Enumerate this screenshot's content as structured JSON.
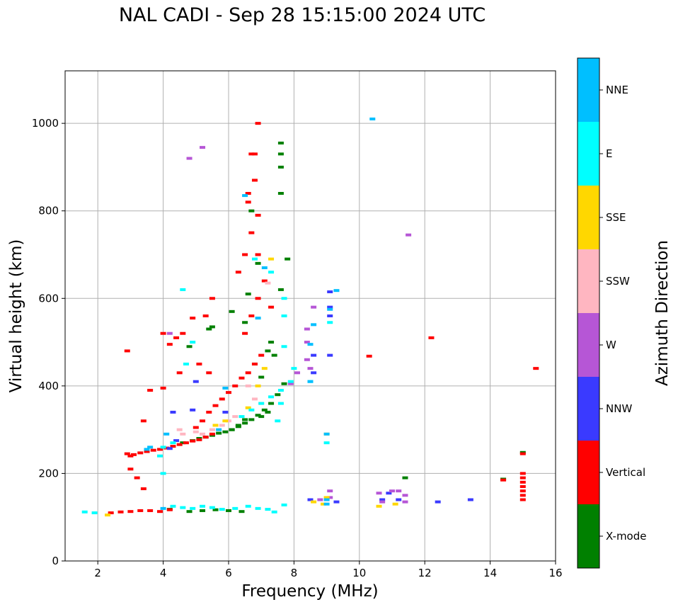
{
  "chart_data": {
    "type": "scatter",
    "title": "NAL CADI - Sep 28 15:15:00 2024 UTC",
    "xlabel": "Frequency (MHz)",
    "ylabel": "Virtual height (km)",
    "xlim": [
      1,
      16
    ],
    "ylim": [
      0,
      1120
    ],
    "xticks": [
      2,
      4,
      6,
      8,
      10,
      12,
      14,
      16
    ],
    "yticks": [
      0,
      200,
      400,
      600,
      800,
      1000
    ],
    "grid": true,
    "colorbar": {
      "label": "Azimuth Direction",
      "categories": [
        {
          "name": "X-mode",
          "color": "#008000"
        },
        {
          "name": "Vertical",
          "color": "#ff0000"
        },
        {
          "name": "NNW",
          "color": "#3a3aff"
        },
        {
          "name": "W",
          "color": "#b656d6"
        },
        {
          "name": "SSW",
          "color": "#ffb6c1"
        },
        {
          "name": "SSE",
          "color": "#ffd700"
        },
        {
          "name": "E",
          "color": "#00ffff"
        },
        {
          "name": "NNE",
          "color": "#00bfff"
        }
      ]
    },
    "series": [
      {
        "name": "X-mode",
        "points": [
          [
            4.6,
            270
          ],
          [
            4.9,
            275
          ],
          [
            5.1,
            280
          ],
          [
            5.3,
            283
          ],
          [
            5.5,
            287
          ],
          [
            5.7,
            292
          ],
          [
            5.9,
            295
          ],
          [
            6.1,
            300
          ],
          [
            6.3,
            307
          ],
          [
            6.5,
            315
          ],
          [
            6.7,
            323
          ],
          [
            6.9,
            333
          ],
          [
            7.1,
            345
          ],
          [
            7.3,
            360
          ],
          [
            7.5,
            380
          ],
          [
            7.7,
            405
          ],
          [
            4.2,
            118
          ],
          [
            4.8,
            113
          ],
          [
            5.2,
            115
          ],
          [
            5.6,
            117
          ],
          [
            6.0,
            115
          ],
          [
            6.4,
            113
          ],
          [
            5.5,
            535
          ],
          [
            5.4,
            530
          ],
          [
            6.1,
            570
          ],
          [
            6.5,
            545
          ],
          [
            6.8,
            450
          ],
          [
            7.0,
            420
          ],
          [
            7.2,
            480
          ],
          [
            7.4,
            470
          ],
          [
            7.6,
            620
          ],
          [
            7.6,
            840
          ],
          [
            7.6,
            900
          ],
          [
            7.6,
            930
          ],
          [
            7.6,
            955
          ],
          [
            7.3,
            500
          ],
          [
            6.9,
            680
          ],
          [
            6.6,
            610
          ],
          [
            7.8,
            690
          ],
          [
            4.8,
            490
          ],
          [
            15.0,
            248
          ],
          [
            14.4,
            187
          ],
          [
            11.4,
            190
          ],
          [
            6.1,
            300
          ],
          [
            6.3,
            310
          ],
          [
            6.5,
            323
          ],
          [
            7.0,
            330
          ],
          [
            7.2,
            340
          ],
          [
            6.7,
            800
          ]
        ]
      },
      {
        "name": "Vertical",
        "points": [
          [
            2.4,
            110
          ],
          [
            2.7,
            112
          ],
          [
            3.0,
            113
          ],
          [
            3.3,
            115
          ],
          [
            3.6,
            115
          ],
          [
            3.9,
            113
          ],
          [
            4.2,
            117
          ],
          [
            2.9,
            245
          ],
          [
            3.1,
            243
          ],
          [
            3.3,
            247
          ],
          [
            3.5,
            250
          ],
          [
            3.7,
            253
          ],
          [
            3.9,
            255
          ],
          [
            4.1,
            258
          ],
          [
            4.3,
            262
          ],
          [
            4.5,
            266
          ],
          [
            4.7,
            270
          ],
          [
            4.9,
            274
          ],
          [
            5.1,
            277
          ],
          [
            5.3,
            283
          ],
          [
            5.5,
            290
          ],
          [
            5.0,
            305
          ],
          [
            5.2,
            320
          ],
          [
            5.4,
            340
          ],
          [
            5.6,
            355
          ],
          [
            5.8,
            370
          ],
          [
            6.0,
            385
          ],
          [
            6.2,
            400
          ],
          [
            6.4,
            418
          ],
          [
            6.6,
            430
          ],
          [
            6.8,
            450
          ],
          [
            7.0,
            470
          ],
          [
            6.5,
            520
          ],
          [
            6.7,
            560
          ],
          [
            6.9,
            600
          ],
          [
            7.1,
            640
          ],
          [
            6.3,
            660
          ],
          [
            6.5,
            700
          ],
          [
            6.7,
            750
          ],
          [
            6.9,
            790
          ],
          [
            6.7,
            930
          ],
          [
            6.8,
            870
          ],
          [
            6.9,
            700
          ],
          [
            6.9,
            1000
          ],
          [
            4.2,
            495
          ],
          [
            4.4,
            510
          ],
          [
            4.6,
            520
          ],
          [
            5.3,
            560
          ],
          [
            5.5,
            600
          ],
          [
            3.6,
            390
          ],
          [
            3.4,
            320
          ],
          [
            2.9,
            480
          ],
          [
            4.0,
            395
          ],
          [
            4.0,
            520
          ],
          [
            4.9,
            555
          ],
          [
            6.6,
            820
          ],
          [
            6.6,
            840
          ],
          [
            6.8,
            930
          ],
          [
            10.3,
            468
          ],
          [
            12.2,
            510
          ],
          [
            15.4,
            440
          ],
          [
            15.0,
            245
          ],
          [
            15.0,
            200
          ],
          [
            15.0,
            190
          ],
          [
            15.0,
            180
          ],
          [
            15.0,
            170
          ],
          [
            15.0,
            160
          ],
          [
            15.0,
            150
          ],
          [
            15.0,
            140
          ],
          [
            14.4,
            185
          ],
          [
            5.1,
            450
          ],
          [
            5.4,
            430
          ],
          [
            4.5,
            430
          ],
          [
            7.3,
            580
          ],
          [
            3.0,
            240
          ],
          [
            3.0,
            210
          ],
          [
            3.2,
            190
          ],
          [
            3.4,
            165
          ]
        ]
      },
      {
        "name": "NNW",
        "points": [
          [
            4.3,
            340
          ],
          [
            4.9,
            345
          ],
          [
            5.0,
            410
          ],
          [
            9.1,
            615
          ],
          [
            9.1,
            580
          ],
          [
            9.1,
            560
          ],
          [
            9.1,
            470
          ],
          [
            8.6,
            470
          ],
          [
            8.6,
            430
          ],
          [
            10.7,
            140
          ],
          [
            10.9,
            155
          ],
          [
            11.2,
            140
          ],
          [
            12.4,
            135
          ],
          [
            13.4,
            140
          ],
          [
            9.3,
            135
          ],
          [
            8.5,
            140
          ],
          [
            4.4,
            275
          ],
          [
            4.2,
            257
          ],
          [
            5.9,
            340
          ]
        ]
      },
      {
        "name": "W",
        "points": [
          [
            8.1,
            430
          ],
          [
            8.4,
            530
          ],
          [
            8.4,
            500
          ],
          [
            8.4,
            460
          ],
          [
            8.5,
            440
          ],
          [
            8.6,
            580
          ],
          [
            8.8,
            140
          ],
          [
            9.1,
            160
          ],
          [
            9.1,
            145
          ],
          [
            10.6,
            155
          ],
          [
            10.7,
            135
          ],
          [
            11.0,
            160
          ],
          [
            11.2,
            160
          ],
          [
            11.4,
            150
          ],
          [
            11.4,
            135
          ],
          [
            11.5,
            745
          ],
          [
            7.9,
            405
          ],
          [
            4.8,
            920
          ],
          [
            5.2,
            945
          ],
          [
            4.2,
            520
          ]
        ]
      },
      {
        "name": "SSW",
        "points": [
          [
            5.0,
            295
          ],
          [
            5.2,
            290
          ],
          [
            5.5,
            300
          ],
          [
            5.8,
            310
          ],
          [
            6.0,
            320
          ],
          [
            6.2,
            330
          ],
          [
            6.8,
            370
          ],
          [
            7.0,
            360
          ],
          [
            4.6,
            290
          ],
          [
            4.5,
            300
          ],
          [
            7.2,
            635
          ],
          [
            6.6,
            400
          ]
        ]
      },
      {
        "name": "SSE",
        "points": [
          [
            2.3,
            105
          ],
          [
            8.6,
            135
          ],
          [
            8.9,
            130
          ],
          [
            9.0,
            145
          ],
          [
            10.6,
            125
          ],
          [
            11.1,
            130
          ],
          [
            6.6,
            350
          ],
          [
            6.9,
            400
          ],
          [
            7.1,
            440
          ],
          [
            5.6,
            310
          ],
          [
            5.9,
            320
          ],
          [
            9.0,
            290
          ],
          [
            7.3,
            690
          ]
        ]
      },
      {
        "name": "E",
        "points": [
          [
            1.6,
            112
          ],
          [
            1.9,
            110
          ],
          [
            4.3,
            125
          ],
          [
            4.6,
            122
          ],
          [
            4.9,
            120
          ],
          [
            5.2,
            125
          ],
          [
            5.5,
            122
          ],
          [
            5.8,
            118
          ],
          [
            6.2,
            120
          ],
          [
            6.6,
            125
          ],
          [
            6.9,
            120
          ],
          [
            7.2,
            118
          ],
          [
            7.4,
            112
          ],
          [
            7.7,
            128
          ],
          [
            4.0,
            260
          ],
          [
            4.3,
            270
          ],
          [
            6.4,
            330
          ],
          [
            6.7,
            345
          ],
          [
            7.0,
            360
          ],
          [
            7.3,
            375
          ],
          [
            7.6,
            390
          ],
          [
            7.9,
            410
          ],
          [
            8.0,
            440
          ],
          [
            7.7,
            490
          ],
          [
            7.7,
            560
          ],
          [
            7.7,
            600
          ],
          [
            7.3,
            660
          ],
          [
            6.8,
            690
          ],
          [
            8.5,
            410
          ],
          [
            9.0,
            270
          ],
          [
            9.1,
            545
          ],
          [
            4.7,
            450
          ],
          [
            4.9,
            500
          ],
          [
            3.9,
            240
          ],
          [
            4.0,
            200
          ],
          [
            4.6,
            620
          ],
          [
            7.6,
            360
          ],
          [
            7.5,
            320
          ]
        ]
      },
      {
        "name": "NNE",
        "points": [
          [
            6.5,
            835
          ],
          [
            10.4,
            1010
          ],
          [
            9.3,
            618
          ],
          [
            9.1,
            575
          ],
          [
            8.6,
            540
          ],
          [
            8.5,
            495
          ],
          [
            8.5,
            410
          ],
          [
            9.0,
            130
          ],
          [
            9.0,
            140
          ],
          [
            7.1,
            670
          ],
          [
            6.9,
            555
          ],
          [
            4.1,
            290
          ],
          [
            3.6,
            260
          ],
          [
            3.5,
            255
          ],
          [
            5.9,
            395
          ],
          [
            5.7,
            300
          ],
          [
            4.0,
            120
          ],
          [
            9.0,
            290
          ]
        ]
      }
    ]
  }
}
